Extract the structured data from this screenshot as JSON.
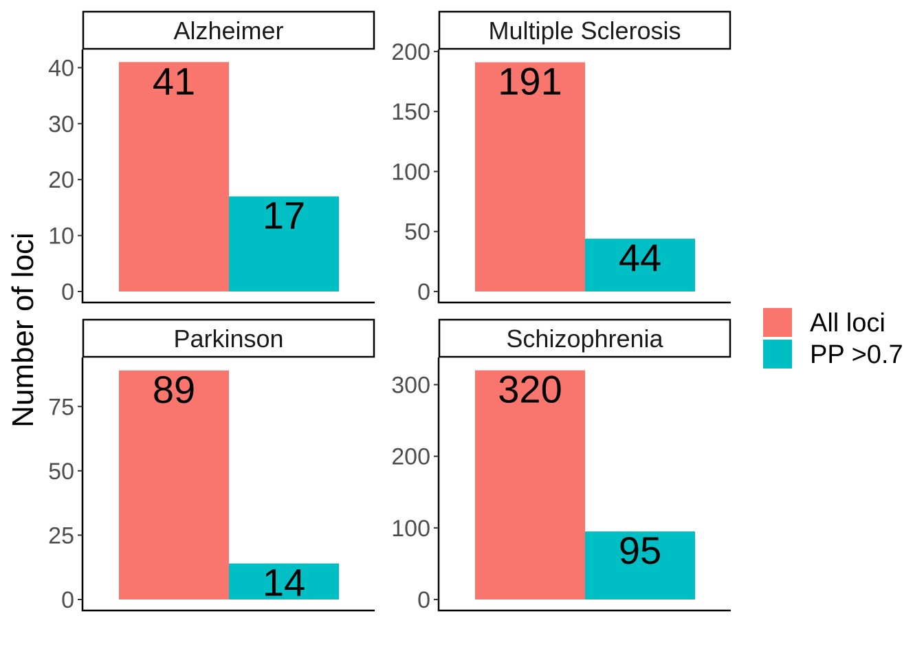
{
  "chart_data": {
    "type": "bar",
    "ylabel": "Number of loci",
    "xlabel": "",
    "grid": false,
    "legend": {
      "position": "right",
      "entries": [
        {
          "label": "All loci",
          "color": "#F8766D"
        },
        {
          "label": "PP >0.7",
          "color": "#00BFC4"
        }
      ]
    },
    "series": [
      {
        "name": "All loci",
        "color": "#F8766D"
      },
      {
        "name": "PP >0.7",
        "color": "#00BFC4"
      }
    ],
    "panels": [
      {
        "title": "Alzheimer",
        "values": [
          41,
          17
        ],
        "ylim": [
          0,
          43
        ],
        "yticks": [
          0,
          10,
          20,
          30,
          40
        ]
      },
      {
        "title": "Multiple Sclerosis",
        "values": [
          191,
          44
        ],
        "ylim": [
          0,
          200.5
        ],
        "yticks": [
          0,
          50,
          100,
          150,
          200
        ]
      },
      {
        "title": "Parkinson",
        "values": [
          89,
          14
        ],
        "ylim": [
          0,
          93.5
        ],
        "yticks": [
          0,
          25,
          50,
          75
        ]
      },
      {
        "title": "Schizophrenia",
        "values": [
          320,
          95
        ],
        "ylim": [
          0,
          336
        ],
        "yticks": [
          0,
          100,
          200,
          300
        ]
      }
    ]
  }
}
